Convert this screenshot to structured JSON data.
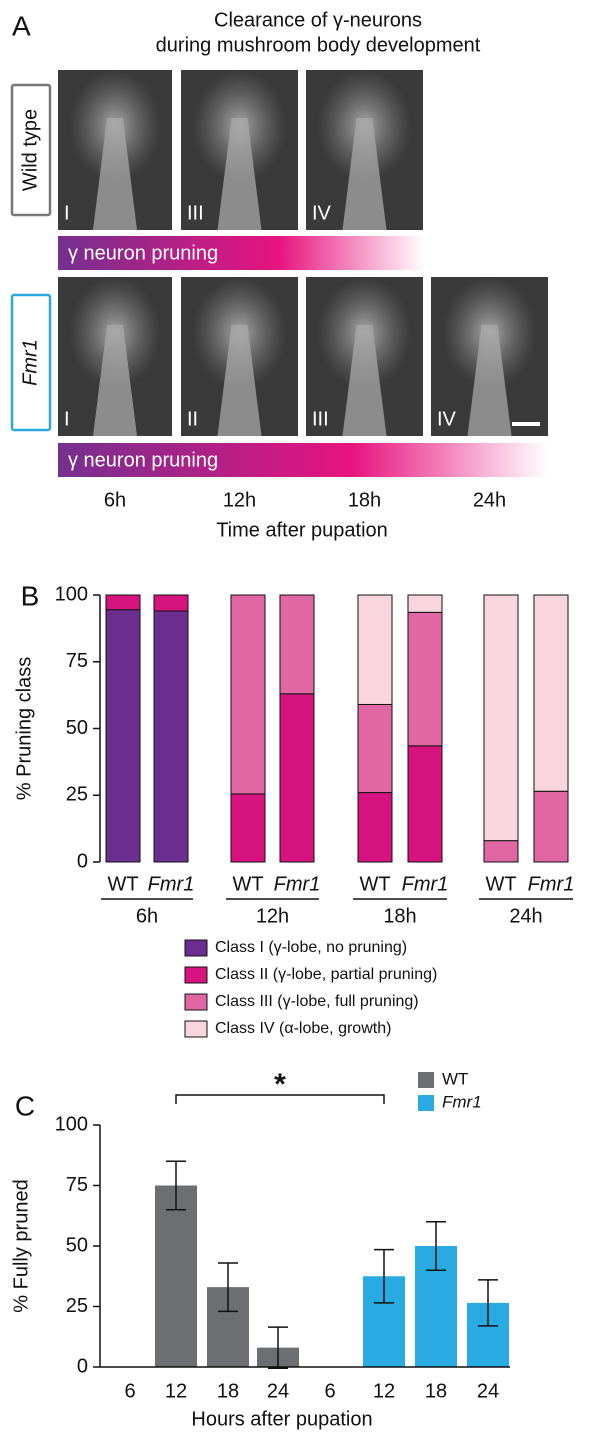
{
  "panel_a": {
    "label": "A",
    "title": [
      "Clearance of  γ-neurons",
      "during mushroom body development"
    ],
    "rows": [
      {
        "name": "Wild type",
        "images": [
          "I",
          "III",
          "IV"
        ],
        "bar": "γ neuron pruning"
      },
      {
        "name": "Fmr1",
        "images": [
          "I",
          "II",
          "III",
          "IV"
        ],
        "bar": "γ neuron pruning"
      }
    ],
    "timepoints": [
      "6h",
      "12h",
      "18h",
      "24h"
    ],
    "xlabel": "Time after pupation"
  },
  "chart_data": [
    {
      "type": "bar",
      "stacked": true,
      "panel": "B",
      "ylabel": "% Pruning class",
      "ylim": [
        0,
        100
      ],
      "yticks": [
        0,
        25,
        50,
        75,
        100
      ],
      "categories": [
        "WT",
        "Fmr1",
        "WT",
        "Fmr1",
        "WT",
        "Fmr1",
        "WT",
        "Fmr1"
      ],
      "groups": [
        "6h",
        "12h",
        "18h",
        "24h"
      ],
      "series": [
        {
          "name": "Class I (γ-lobe, no pruning)",
          "color": "#6b2d8f",
          "values": [
            94.5,
            94,
            0,
            0,
            0,
            0,
            0,
            0
          ]
        },
        {
          "name": "Class II (γ-lobe, partial pruning)",
          "color": "#d6137f",
          "values": [
            5.5,
            6,
            25.5,
            63,
            26,
            43.5,
            0,
            0
          ]
        },
        {
          "name": "Class III (γ-lobe, full pruning)",
          "color": "#e067a4",
          "values": [
            0,
            0,
            74.5,
            37,
            33,
            50,
            8,
            26.5
          ]
        },
        {
          "name": "Class IV (α-lobe, growth)",
          "color": "#f9d5df",
          "values": [
            0,
            0,
            0,
            0,
            41,
            6.5,
            92,
            73.5
          ]
        }
      ]
    },
    {
      "type": "bar",
      "stacked": false,
      "panel": "C",
      "ylabel": "% Fully pruned",
      "xlabel": "Hours after pupation",
      "ylim": [
        0,
        100
      ],
      "yticks": [
        0,
        25,
        50,
        75,
        100
      ],
      "categories": [
        "6",
        "12",
        "18",
        "24"
      ],
      "annotation": "*",
      "series": [
        {
          "name": "WT",
          "color": "#6d6e71",
          "values": [
            0,
            75,
            33,
            8
          ],
          "errors": [
            null,
            10,
            10,
            8.5
          ]
        },
        {
          "name": "Fmr1",
          "color": "#29aae2",
          "values": [
            0,
            37.5,
            50,
            26.5
          ],
          "errors": [
            null,
            11,
            10,
            9.5
          ]
        }
      ]
    }
  ]
}
